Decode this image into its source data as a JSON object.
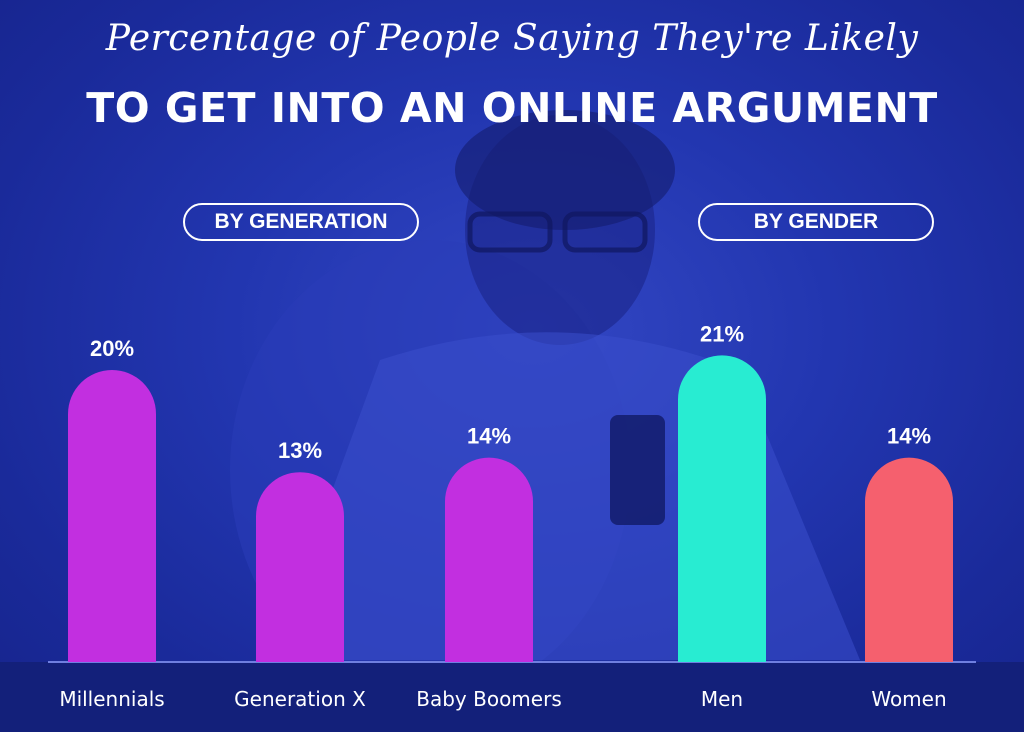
{
  "title_line1": "Percentage of People Saying They're Likely",
  "title_line2": "TO GET INTO AN ONLINE ARGUMENT",
  "groups": {
    "generation": "BY GENERATION",
    "gender": "BY GENDER"
  },
  "colors": {
    "background": "#1e2fa3",
    "generation_bar": "#c22fe0",
    "men_bar": "#28ecd2",
    "women_bar": "#f5606e",
    "text": "#ffffff"
  },
  "chart_data": {
    "type": "bar",
    "categories": [
      "Millennials",
      "Generation X",
      "Baby Boomers",
      "Men",
      "Women"
    ],
    "values": [
      20,
      13,
      14,
      21,
      14
    ],
    "data_labels": [
      "20%",
      "13%",
      "14%",
      "21%",
      "14%"
    ],
    "groups": [
      "BY GENERATION",
      "BY GENERATION",
      "BY GENERATION",
      "BY GENDER",
      "BY GENDER"
    ],
    "bar_colors": [
      "#c22fe0",
      "#c22fe0",
      "#c22fe0",
      "#28ecd2",
      "#f5606e"
    ],
    "ylim": [
      0,
      21
    ],
    "grid": false,
    "title": "Percentage of People Saying They're Likely TO GET INTO AN ONLINE ARGUMENT"
  }
}
